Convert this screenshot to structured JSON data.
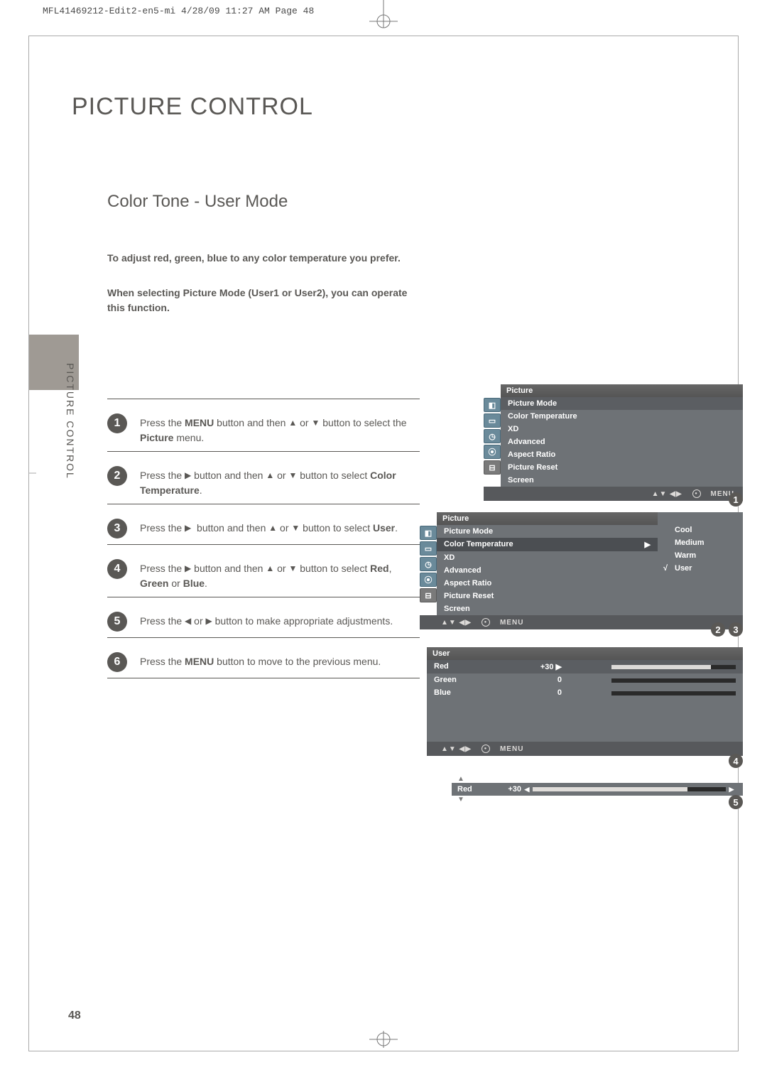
{
  "meta_line": "MFL41469212-Edit2-en5-mi  4/28/09  11:27 AM  Page 48",
  "page_title": "PICTURE CONTROL",
  "section_title": "Color Tone - User Mode",
  "intro": {
    "p1": "To adjust red, green, blue to any color temperature you prefer.",
    "p2": "When selecting Picture Mode (User1 or User2), you can operate this function."
  },
  "side_label": "PICTURE CONTROL",
  "steps": [
    {
      "num": "1",
      "html": "Press the <b>MENU</b> button and then <span class='tri'>&#9650;</span> or <span class='tri'>&#9660;</span> button to select the <b>Picture</b> menu."
    },
    {
      "num": "2",
      "html": "Press the <span class='tri'>&#9654;</span> button and then <span class='tri'>&#9650;</span> or <span class='tri'>&#9660;</span> button to select <b>Color Temperature</b>."
    },
    {
      "num": "3",
      "html": "Press the <span class='tri'>&#9654;</span>&nbsp; button and then <span class='tri'>&#9650;</span> or <span class='tri'>&#9660;</span> button to select <b>User</b>."
    },
    {
      "num": "4",
      "html": "Press the <span class='tri'>&#9654;</span> button and then <span class='tri'>&#9650;</span> or <span class='tri'>&#9660;</span> button to select <b>Red</b>, <b>Green</b> or <b>Blue</b>."
    },
    {
      "num": "5",
      "html": "Press the <span class='tri'>&#9664;</span> or <span class='tri'>&#9654;</span> button to make appropriate adjustments."
    },
    {
      "num": "6",
      "html": "Press the <b>MENU</b> button to move to the previous menu."
    }
  ],
  "osd_common": {
    "nav_arrows": "▲▼  ◀▶",
    "menu_label": "MENU"
  },
  "osd1": {
    "title": "Picture",
    "items": [
      "Picture Mode",
      "Color Temperature",
      "XD",
      "Advanced",
      "Aspect Ratio",
      "Picture Reset",
      "Screen"
    ],
    "selected_index": 0
  },
  "osd2": {
    "title": "Picture",
    "items": [
      "Picture Mode",
      "Color Temperature",
      "XD",
      "Advanced",
      "Aspect Ratio",
      "Picture Reset",
      "Screen"
    ],
    "selected_index": 1,
    "submenu": [
      "Cool",
      "Medium",
      "Warm",
      "User"
    ],
    "submenu_checked": 3
  },
  "osd3": {
    "title": "User",
    "rows": [
      {
        "label": "Red",
        "value": "+30",
        "fill_pct": 80,
        "selected": true
      },
      {
        "label": "Green",
        "value": "0",
        "fill_pct": 0,
        "selected": false
      },
      {
        "label": "Blue",
        "value": "0",
        "fill_pct": 0,
        "selected": false
      }
    ]
  },
  "slider": {
    "label": "Red",
    "value": "+30",
    "fill_pct": 80
  },
  "refs": {
    "r1": "1",
    "r2": "2",
    "r3": "3",
    "r4": "4",
    "r5": "5"
  },
  "page_number": "48",
  "colors": {
    "text": "#5a5855",
    "side_tab": "#9f9a94",
    "osd_body": "#6e7276",
    "osd_sel": "#5b5e62",
    "osd_nav": "#57595c",
    "osd_icon": "#6a8a9a"
  }
}
